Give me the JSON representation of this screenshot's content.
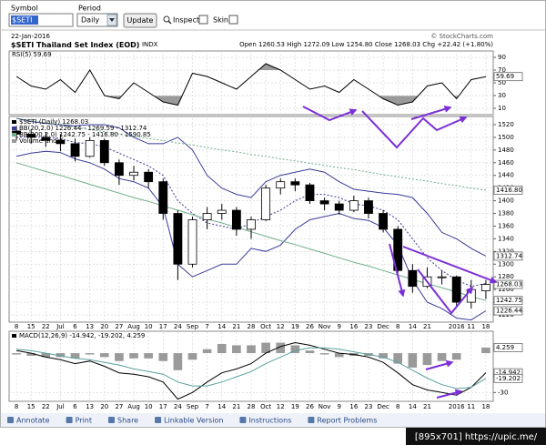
{
  "toolbar": {
    "symbol_label": "Symbol",
    "symbol": "$SETI",
    "period_label": "Period",
    "period": "Daily",
    "update": "Update",
    "inspect": "Inspect",
    "skin": "Skin"
  },
  "header": {
    "date": "22-Jan-2016",
    "copyright": "© StockCharts.com",
    "title": "$SETI Thailand Set Index (EOD)",
    "exchange": "INDX",
    "quote": "Open 1260.53 High 1272.09 Low 1254.80 Close 1268.03 Chg +22.42 (+1.80%)"
  },
  "chart_data": [
    {
      "type": "rsi",
      "series": [
        {
          "name": "RSI(5) 59.69",
          "color": "#000000",
          "values": [
            60,
            45,
            40,
            55,
            35,
            70,
            30,
            25,
            50,
            35,
            20,
            15,
            65,
            60,
            50,
            40,
            60,
            80,
            70,
            55,
            40,
            45,
            35,
            55,
            40,
            25,
            15,
            20,
            45,
            50,
            25,
            55,
            59.69
          ]
        }
      ],
      "shade_color": "#9a9a9a",
      "ylim": [
        0,
        100
      ],
      "yticks": [
        10,
        30,
        50,
        70,
        90
      ],
      "value_tags": [
        {
          "value": 59.69,
          "label": "59.69"
        }
      ]
    },
    {
      "type": "candlestick",
      "categories": [
        "8",
        "15",
        "22",
        "Jul",
        "6",
        "13",
        "20",
        "27",
        "Aug",
        "10",
        "17",
        "24",
        "Sep",
        "7",
        "14",
        "21",
        "28",
        "Oct",
        "12",
        "19",
        "26",
        "Nov",
        "9",
        "16",
        "23",
        "Dec",
        "8",
        "14",
        "21",
        null,
        "2016",
        "11",
        "18"
      ],
      "name": "$SETI (Daily) 1268.03",
      "color": "#000000",
      "open": [
        1510,
        1505,
        1500,
        1495,
        1490,
        1470,
        1495,
        1460,
        1440,
        1445,
        1430,
        1380,
        1300,
        1370,
        1380,
        1385,
        1355,
        1370,
        1420,
        1430,
        1425,
        1400,
        1395,
        1385,
        1400,
        1380,
        1355,
        1290,
        1265,
        1280,
        1280,
        1240,
        1258
      ],
      "high": [
        1518,
        1512,
        1508,
        1505,
        1498,
        1500,
        1498,
        1465,
        1455,
        1450,
        1435,
        1385,
        1375,
        1390,
        1395,
        1390,
        1375,
        1425,
        1435,
        1435,
        1428,
        1405,
        1400,
        1408,
        1405,
        1385,
        1360,
        1300,
        1295,
        1290,
        1282,
        1275,
        1275
      ],
      "low": [
        1495,
        1490,
        1485,
        1478,
        1462,
        1468,
        1455,
        1425,
        1432,
        1420,
        1370,
        1275,
        1295,
        1355,
        1370,
        1345,
        1340,
        1368,
        1410,
        1415,
        1395,
        1385,
        1378,
        1382,
        1372,
        1350,
        1285,
        1255,
        1262,
        1268,
        1232,
        1230,
        1245
      ],
      "close": [
        1505,
        1500,
        1495,
        1490,
        1470,
        1495,
        1460,
        1440,
        1445,
        1430,
        1380,
        1300,
        1370,
        1380,
        1385,
        1355,
        1370,
        1420,
        1430,
        1425,
        1400,
        1395,
        1385,
        1400,
        1380,
        1355,
        1290,
        1265,
        1280,
        1280,
        1240,
        1260,
        1268.03
      ],
      "series": [
        {
          "name": "BB(20,2.0) 1226.44 - 1269.59 - 1312.74",
          "color": "#3a3a9a",
          "upper": [
            1530,
            1525,
            1522,
            1520,
            1518,
            1520,
            1520,
            1515,
            1500,
            1490,
            1490,
            1500,
            1480,
            1440,
            1420,
            1410,
            1405,
            1430,
            1440,
            1445,
            1450,
            1445,
            1430,
            1418,
            1415,
            1412,
            1410,
            1405,
            1380,
            1350,
            1340,
            1325,
            1312.74
          ],
          "middle": [
            1500,
            1500,
            1500,
            1498,
            1492,
            1490,
            1485,
            1475,
            1465,
            1455,
            1440,
            1400,
            1380,
            1365,
            1360,
            1355,
            1365,
            1375,
            1385,
            1400,
            1410,
            1410,
            1405,
            1395,
            1392,
            1385,
            1370,
            1340,
            1310,
            1290,
            1275,
            1265,
            1269.59
          ],
          "lower": [
            1470,
            1475,
            1478,
            1476,
            1466,
            1460,
            1450,
            1435,
            1430,
            1420,
            1390,
            1300,
            1280,
            1290,
            1300,
            1300,
            1325,
            1320,
            1330,
            1355,
            1370,
            1375,
            1380,
            1372,
            1369,
            1358,
            1330,
            1275,
            1240,
            1230,
            1215,
            1212,
            1226.44
          ]
        },
        {
          "name": "BB(200,2.0) 1242.75 - 1416.80 - 1590.85",
          "color": "#6fae8a",
          "middle": [
            1530,
            1526,
            1523,
            1519,
            1516,
            1512,
            1509,
            1505,
            1502,
            1498,
            1495,
            1491,
            1488,
            1484,
            1480,
            1477,
            1473,
            1470,
            1466,
            1463,
            1459,
            1456,
            1452,
            1449,
            1445,
            1441,
            1438,
            1434,
            1431,
            1427,
            1424,
            1420,
            1416.8
          ],
          "lower": [
            1460,
            1453,
            1446,
            1440,
            1433,
            1426,
            1419,
            1412,
            1405,
            1399,
            1392,
            1385,
            1378,
            1371,
            1365,
            1358,
            1351,
            1344,
            1337,
            1331,
            1324,
            1317,
            1310,
            1303,
            1297,
            1290,
            1283,
            1276,
            1269,
            1263,
            1256,
            1249,
            1242.75
          ]
        }
      ],
      "volume_label": "Volume undef",
      "ylim": [
        1210,
        1530
      ],
      "yticks": [
        1220,
        1240,
        1260,
        1280,
        1300,
        1320,
        1340,
        1360,
        1380,
        1400,
        1420,
        1440,
        1460,
        1480,
        1500,
        1520
      ],
      "grid": true,
      "value_tags": [
        {
          "value": 1416.8,
          "label": "1416.80"
        },
        {
          "value": 1312.74,
          "label": "1312.74"
        },
        {
          "value": 1268.03,
          "label": "1268.03"
        },
        {
          "value": 1242.75,
          "label": "1242.75"
        },
        {
          "value": 1226.44,
          "label": "1226.44"
        }
      ]
    },
    {
      "type": "macd",
      "legend": "MACD(12,26,9) -14.942, -19.202, 4.259",
      "series": [
        {
          "color": "#000000",
          "values": [
            2,
            0,
            -3,
            -5,
            -8,
            -6,
            -10,
            -15,
            -16,
            -18,
            -22,
            -35,
            -30,
            -22,
            -15,
            -12,
            -8,
            0,
            5,
            8,
            6,
            3,
            0,
            -1,
            -3,
            -7,
            -15,
            -24,
            -28,
            -30,
            -32,
            -26,
            -14.942
          ]
        },
        {
          "color": "#5aa0a0",
          "values": [
            3,
            2,
            0,
            -2,
            -4,
            -5,
            -7,
            -9,
            -12,
            -14,
            -16,
            -22,
            -25,
            -25,
            -22,
            -18,
            -14,
            -8,
            -3,
            2,
            4,
            4,
            3,
            1,
            -1,
            -3,
            -7,
            -13,
            -19,
            -24,
            -27,
            -26,
            -19.202
          ]
        }
      ],
      "histogram": {
        "color": "#9a9a9a",
        "values": [
          -1,
          -2,
          -3,
          -3,
          -4,
          -1,
          -3,
          -6,
          -4,
          -4,
          -6,
          -13,
          -5,
          3,
          7,
          6,
          6,
          8,
          8,
          6,
          2,
          -1,
          -3,
          -2,
          -2,
          -4,
          -8,
          -11,
          -9,
          -6,
          -5,
          0,
          4.259
        ]
      },
      "ylim": [
        -36,
        16
      ],
      "yticks": [
        -30
      ],
      "value_tags": [
        {
          "value": 4.259,
          "label": "4.259"
        },
        {
          "value": -14.942,
          "label": "-14.942"
        },
        {
          "value": -19.202,
          "label": "-19.202"
        }
      ]
    }
  ],
  "footer": {
    "links": [
      "Annotate",
      "Print",
      "Share",
      "Linkable Version",
      "Instructions",
      "Report Problems"
    ]
  },
  "watermark": "[895x701] https://upic.me/"
}
